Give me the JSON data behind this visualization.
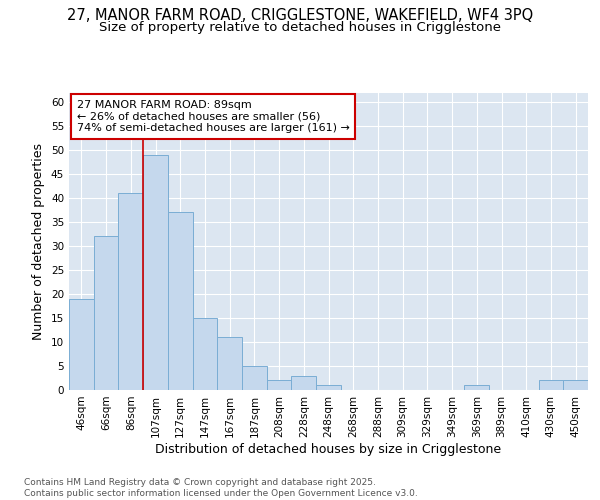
{
  "title_line1": "27, MANOR FARM ROAD, CRIGGLESTONE, WAKEFIELD, WF4 3PQ",
  "title_line2": "Size of property relative to detached houses in Crigglestone",
  "xlabel": "Distribution of detached houses by size in Crigglestone",
  "ylabel": "Number of detached properties",
  "footer": "Contains HM Land Registry data © Crown copyright and database right 2025.\nContains public sector information licensed under the Open Government Licence v3.0.",
  "categories": [
    "46sqm",
    "66sqm",
    "86sqm",
    "107sqm",
    "127sqm",
    "147sqm",
    "167sqm",
    "187sqm",
    "208sqm",
    "228sqm",
    "248sqm",
    "268sqm",
    "288sqm",
    "309sqm",
    "329sqm",
    "349sqm",
    "369sqm",
    "389sqm",
    "410sqm",
    "430sqm",
    "450sqm"
  ],
  "values": [
    19,
    32,
    41,
    49,
    37,
    15,
    11,
    5,
    2,
    3,
    1,
    0,
    0,
    0,
    0,
    0,
    1,
    0,
    0,
    2,
    2
  ],
  "bar_color": "#c5d8ed",
  "bar_edge_color": "#7aadd4",
  "background_color": "#dce6f1",
  "grid_color": "#ffffff",
  "annotation_line1": "27 MANOR FARM ROAD: 89sqm",
  "annotation_line2": "← 26% of detached houses are smaller (56)",
  "annotation_line3": "74% of semi-detached houses are larger (161) →",
  "annotation_box_color": "#ffffff",
  "annotation_box_edge_color": "#cc0000",
  "vline_color": "#cc0000",
  "vline_x_index": 2.5,
  "ylim": [
    0,
    62
  ],
  "yticks": [
    0,
    5,
    10,
    15,
    20,
    25,
    30,
    35,
    40,
    45,
    50,
    55,
    60
  ],
  "fig_bg": "#ffffff",
  "title_fontsize": 10.5,
  "subtitle_fontsize": 9.5,
  "axis_label_fontsize": 9,
  "tick_fontsize": 7.5,
  "annotation_fontsize": 8,
  "footer_fontsize": 6.5
}
